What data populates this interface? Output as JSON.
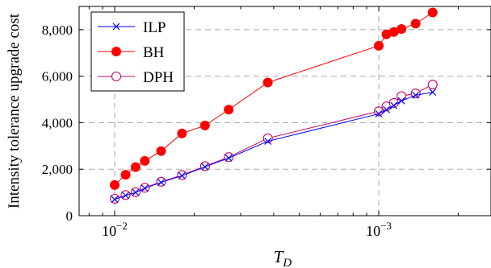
{
  "chart_data": {
    "type": "line",
    "xlabel": "T_D",
    "ylabel": "Intensity tolerance upgrade cost",
    "x_scale": "log-reciprocal",
    "x_ticks": [
      {
        "value": 0.01,
        "base": "10",
        "exp": "−2"
      },
      {
        "value": 0.001,
        "base": "10",
        "exp": "−3"
      }
    ],
    "y_ticks": [
      {
        "value": 0,
        "label": "0"
      },
      {
        "value": 2000,
        "label": "2,000"
      },
      {
        "value": 4000,
        "label": "4,000"
      },
      {
        "value": 6000,
        "label": "6,000"
      },
      {
        "value": 8000,
        "label": "8,000"
      }
    ],
    "ylim": [
      0,
      9000
    ],
    "grid": true,
    "legend_position": "top-left",
    "x": [
      0.01,
      0.00909,
      0.00833,
      0.00769,
      0.00667,
      0.00556,
      0.00455,
      0.0037,
      0.00263,
      0.001,
      0.000935,
      0.000877,
      0.00082,
      0.000725,
      0.000625
    ],
    "series": [
      {
        "name": "ILP",
        "marker": "x",
        "color": "#0000ff",
        "values": [
          700,
          870,
          1000,
          1180,
          1430,
          1720,
          2100,
          2480,
          3200,
          4380,
          4560,
          4740,
          4940,
          5180,
          5310
        ]
      },
      {
        "name": "BH",
        "marker": "filled-circle",
        "color": "#ff0000",
        "values": [
          1320,
          1760,
          2090,
          2360,
          2780,
          3540,
          3880,
          4560,
          5730,
          7310,
          7800,
          7900,
          8030,
          8260,
          8740
        ]
      },
      {
        "name": "DPH",
        "marker": "open-circle",
        "color": "#cc0066",
        "values": [
          730,
          890,
          1010,
          1200,
          1460,
          1750,
          2130,
          2520,
          3330,
          4490,
          4700,
          4850,
          5140,
          5260,
          5640
        ]
      }
    ]
  }
}
